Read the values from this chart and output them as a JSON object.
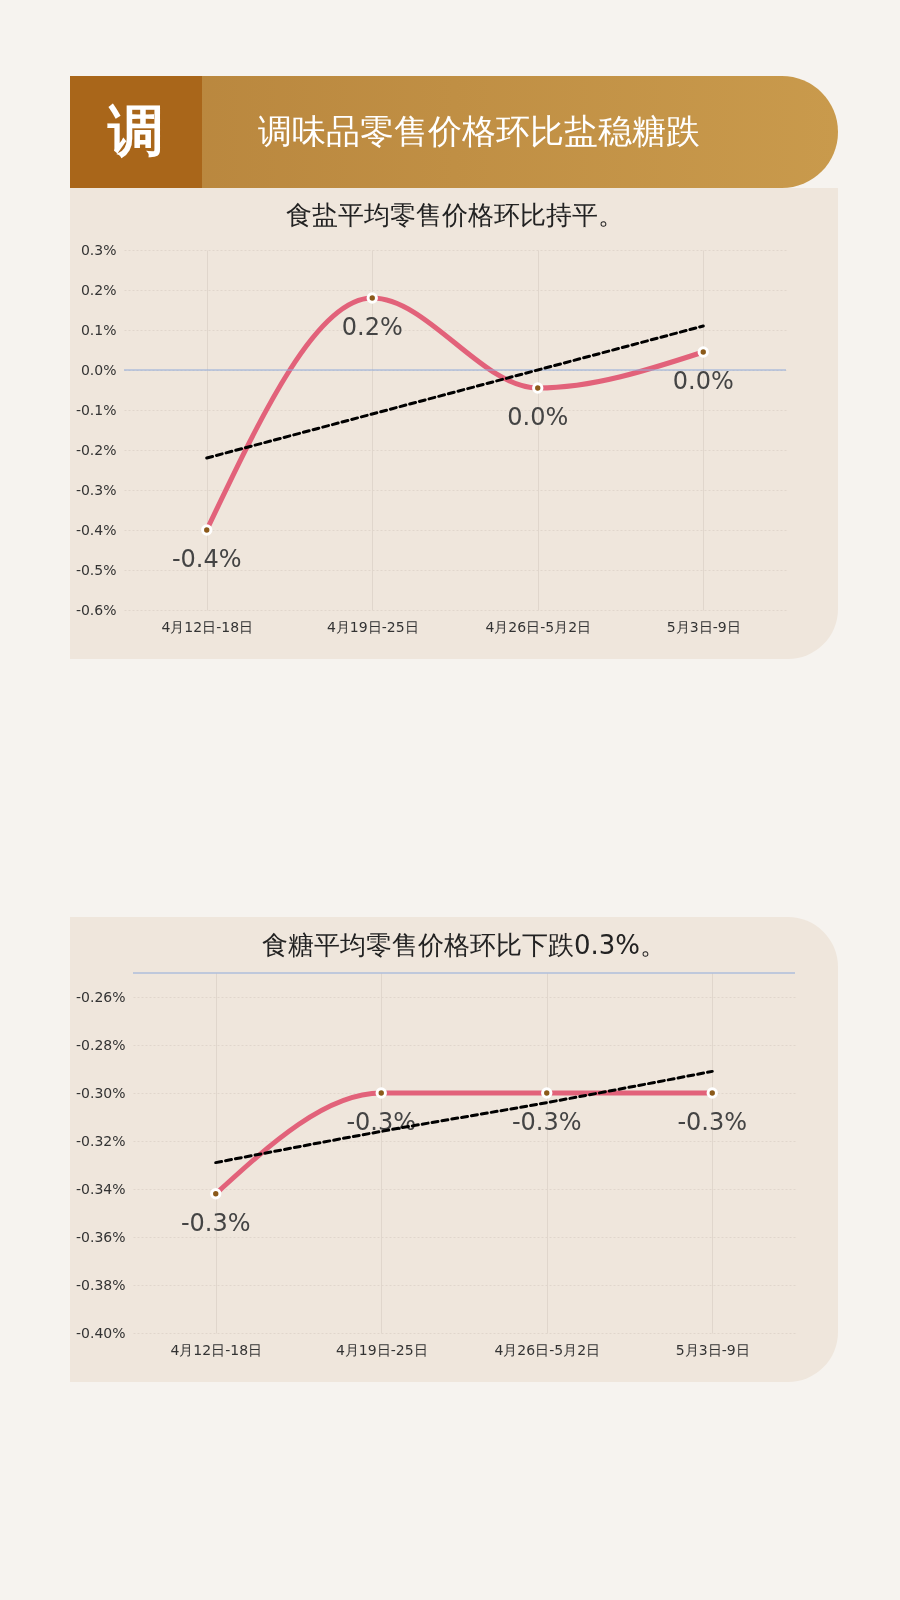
{
  "chart_data": [
    {
      "type": "line",
      "title": "食盐平均零售价格环比持平。",
      "annotations": [
        "调",
        "调味品零售价格环比盐稳糖跌"
      ],
      "categories": [
        "4月12日-18日",
        "4月19日-25日",
        "4月26日-5月2日",
        "5月3日-9日"
      ],
      "series": [
        {
          "color": "#e2627a",
          "values": [
            -0.4,
            0.18,
            -0.045,
            0.045
          ],
          "value_labels": [
            "-0.4%",
            "0.2%",
            "0.0%",
            "0.0%"
          ]
        },
        {
          "type": "line",
          "color": "#000000",
          "line_style": "dashed",
          "marker": "none",
          "values": [
            -0.22,
            -0.11,
            0.0,
            0.11
          ]
        }
      ],
      "ylim": [
        -0.6,
        0.3
      ],
      "yticks": [
        {
          "value": 0.3,
          "label": "0.3%"
        },
        {
          "value": 0.2,
          "label": "0.2%"
        },
        {
          "value": 0.1,
          "label": "0.1%"
        },
        {
          "value": 0,
          "label": "0.0%"
        },
        {
          "value": -0.1,
          "label": "-0.1%"
        },
        {
          "value": -0.2,
          "label": "-0.2%"
        },
        {
          "value": -0.3,
          "label": "-0.3%"
        },
        {
          "value": -0.4,
          "label": "-0.4%"
        },
        {
          "value": -0.5,
          "label": "-0.5%"
        },
        {
          "value": -0.6,
          "label": "-0.6%"
        }
      ],
      "ref_lines": [
        {
          "axis": "y",
          "value": 0,
          "color": "#8eaadb"
        }
      ],
      "grid": true,
      "marker": "circle",
      "line_style": "solid"
    },
    {
      "type": "line",
      "title": "食糖平均零售价格环比下跌0.3%。",
      "categories": [
        "4月12日-18日",
        "4月19日-25日",
        "4月26日-5月2日",
        "5月3日-9日"
      ],
      "series": [
        {
          "color": "#e2627a",
          "values": [
            -0.342,
            -0.3,
            -0.3,
            -0.3
          ],
          "value_labels": [
            "-0.3%",
            "-0.3%",
            "-0.3%",
            "-0.3%"
          ]
        },
        {
          "type": "line",
          "color": "#000000",
          "line_style": "dashed",
          "marker": "none",
          "values": [
            -0.329,
            -0.316,
            -0.304,
            -0.291
          ]
        }
      ],
      "ylim": [
        -0.4,
        -0.25
      ],
      "yticks": [
        {
          "value": -0.26,
          "label": "-0.26%"
        },
        {
          "value": -0.28,
          "label": "-0.28%"
        },
        {
          "value": -0.3,
          "label": "-0.30%"
        },
        {
          "value": -0.32,
          "label": "-0.32%"
        },
        {
          "value": -0.34,
          "label": "-0.34%"
        },
        {
          "value": -0.36,
          "label": "-0.36%"
        },
        {
          "value": -0.38,
          "label": "-0.38%"
        },
        {
          "value": -0.4,
          "label": "-0.40%"
        }
      ],
      "ref_lines": [
        {
          "axis": "y",
          "value": -0.25,
          "color": "#8eaadb"
        }
      ],
      "grid": true,
      "marker": "circle",
      "line_style": "solid"
    }
  ]
}
